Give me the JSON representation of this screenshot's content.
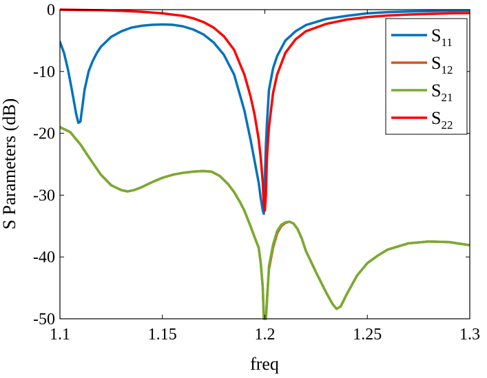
{
  "chart_data": {
    "type": "line",
    "title": "",
    "xlabel": "freq",
    "ylabel": "S Parameters (dB)",
    "xlim": [
      1.1,
      1.3
    ],
    "ylim": [
      -50,
      0
    ],
    "xticks": [
      1.1,
      1.15,
      1.2,
      1.25,
      1.3
    ],
    "xtick_labels": [
      "1.1",
      "1.15",
      "1.2",
      "1.25",
      "1.3"
    ],
    "yticks": [
      -50,
      -40,
      -30,
      -20,
      -10,
      0
    ],
    "ytick_labels": [
      "-50",
      "-40",
      "-30",
      "-20",
      "-10",
      "0"
    ],
    "grid": false,
    "legend_position": "top-right",
    "series": [
      {
        "name": "S11",
        "label_main": "S",
        "label_sub": "11",
        "color": "#0072BD",
        "x": [
          1.1,
          1.102,
          1.104,
          1.106,
          1.108,
          1.109,
          1.11,
          1.111,
          1.112,
          1.114,
          1.116,
          1.118,
          1.12,
          1.125,
          1.13,
          1.135,
          1.14,
          1.145,
          1.15,
          1.155,
          1.16,
          1.165,
          1.17,
          1.175,
          1.18,
          1.185,
          1.19,
          1.193,
          1.195,
          1.197,
          1.198,
          1.199,
          1.1995,
          1.2005,
          1.201,
          1.202,
          1.204,
          1.206,
          1.21,
          1.215,
          1.22,
          1.23,
          1.24,
          1.25,
          1.26,
          1.27,
          1.28,
          1.29,
          1.3
        ],
        "y": [
          -5.2,
          -7.0,
          -9.8,
          -13.3,
          -17.0,
          -18.3,
          -18.1,
          -15.6,
          -13.0,
          -10.0,
          -8.3,
          -7.0,
          -6.0,
          -4.4,
          -3.5,
          -2.9,
          -2.6,
          -2.45,
          -2.4,
          -2.45,
          -2.7,
          -3.2,
          -4.0,
          -5.3,
          -7.3,
          -10.5,
          -16.3,
          -21.0,
          -24.5,
          -28.0,
          -30.5,
          -32.5,
          -33.0,
          -22.0,
          -18.5,
          -13.0,
          -9.5,
          -7.5,
          -5.0,
          -3.5,
          -2.5,
          -1.5,
          -1.0,
          -0.6,
          -0.4,
          -0.3,
          -0.25,
          -0.2,
          -0.15
        ]
      },
      {
        "name": "S12",
        "label_main": "S",
        "label_sub": "12",
        "color": "#D95319",
        "x": [
          1.1,
          1.105,
          1.11,
          1.115,
          1.12,
          1.125,
          1.13,
          1.133,
          1.136,
          1.14,
          1.145,
          1.15,
          1.155,
          1.16,
          1.165,
          1.17,
          1.174,
          1.178,
          1.182,
          1.185,
          1.188,
          1.19,
          1.193,
          1.195,
          1.197,
          1.198,
          1.199,
          1.1995,
          1.2,
          1.2005,
          1.201,
          1.202,
          1.204,
          1.206,
          1.208,
          1.21,
          1.212,
          1.214,
          1.216,
          1.218,
          1.22,
          1.225,
          1.23,
          1.233,
          1.235,
          1.237,
          1.24,
          1.245,
          1.25,
          1.255,
          1.26,
          1.27,
          1.28,
          1.29,
          1.3
        ],
        "y": [
          -19.0,
          -19.8,
          -21.8,
          -24.3,
          -26.7,
          -28.4,
          -29.2,
          -29.4,
          -29.2,
          -28.7,
          -27.9,
          -27.2,
          -26.7,
          -26.4,
          -26.2,
          -26.1,
          -26.2,
          -26.9,
          -28.2,
          -29.5,
          -31.2,
          -32.5,
          -35.0,
          -36.8,
          -38.5,
          -41.0,
          -45.0,
          -50.0,
          -50.0,
          -50.0,
          -47.0,
          -42.0,
          -38.5,
          -36.2,
          -35.0,
          -34.5,
          -34.3,
          -34.6,
          -35.5,
          -37.0,
          -39.0,
          -42.5,
          -45.8,
          -47.6,
          -48.4,
          -48.0,
          -46.0,
          -43.0,
          -41.0,
          -39.8,
          -38.8,
          -37.8,
          -37.5,
          -37.6,
          -38.1
        ]
      },
      {
        "name": "S21",
        "label_main": "S",
        "label_sub": "21",
        "color": "#77AC30",
        "x": [
          1.1,
          1.105,
          1.11,
          1.115,
          1.12,
          1.125,
          1.13,
          1.133,
          1.136,
          1.14,
          1.145,
          1.15,
          1.155,
          1.16,
          1.165,
          1.17,
          1.174,
          1.178,
          1.182,
          1.185,
          1.188,
          1.19,
          1.193,
          1.195,
          1.197,
          1.198,
          1.199,
          1.1995,
          1.2,
          1.2005,
          1.201,
          1.202,
          1.204,
          1.206,
          1.208,
          1.21,
          1.212,
          1.214,
          1.216,
          1.218,
          1.22,
          1.225,
          1.23,
          1.233,
          1.235,
          1.237,
          1.24,
          1.245,
          1.25,
          1.255,
          1.26,
          1.27,
          1.28,
          1.29,
          1.3
        ],
        "y": [
          -19.0,
          -19.8,
          -21.8,
          -24.3,
          -26.7,
          -28.4,
          -29.2,
          -29.4,
          -29.2,
          -28.7,
          -27.9,
          -27.2,
          -26.7,
          -26.4,
          -26.2,
          -26.1,
          -26.2,
          -26.9,
          -28.2,
          -29.5,
          -31.2,
          -32.5,
          -35.0,
          -36.8,
          -38.5,
          -41.0,
          -45.0,
          -50.0,
          -50.0,
          -50.0,
          -47.5,
          -41.5,
          -38.0,
          -35.8,
          -34.8,
          -34.4,
          -34.3,
          -34.6,
          -35.5,
          -37.0,
          -39.0,
          -42.5,
          -45.8,
          -47.6,
          -48.4,
          -48.0,
          -46.0,
          -43.0,
          -41.0,
          -39.8,
          -38.8,
          -37.8,
          -37.5,
          -37.6,
          -38.1
        ]
      },
      {
        "name": "S22",
        "label_main": "S",
        "label_sub": "22",
        "color": "#FF0000",
        "x": [
          1.1,
          1.11,
          1.12,
          1.13,
          1.14,
          1.15,
          1.16,
          1.165,
          1.17,
          1.175,
          1.18,
          1.185,
          1.19,
          1.193,
          1.195,
          1.197,
          1.198,
          1.199,
          1.1995,
          1.2,
          1.2005,
          1.201,
          1.202,
          1.204,
          1.206,
          1.21,
          1.215,
          1.22,
          1.23,
          1.24,
          1.25,
          1.26,
          1.27,
          1.28,
          1.29,
          1.3
        ],
        "y": [
          0.0,
          -0.05,
          -0.1,
          -0.2,
          -0.35,
          -0.6,
          -1.0,
          -1.4,
          -2.0,
          -2.9,
          -4.3,
          -6.5,
          -10.5,
          -14.0,
          -17.0,
          -21.0,
          -24.0,
          -28.0,
          -31.5,
          -32.5,
          -30.0,
          -24.0,
          -19.0,
          -13.5,
          -10.5,
          -7.0,
          -4.8,
          -3.5,
          -2.3,
          -1.6,
          -1.2,
          -0.95,
          -0.8,
          -0.7,
          -0.6,
          -0.55
        ]
      }
    ]
  }
}
